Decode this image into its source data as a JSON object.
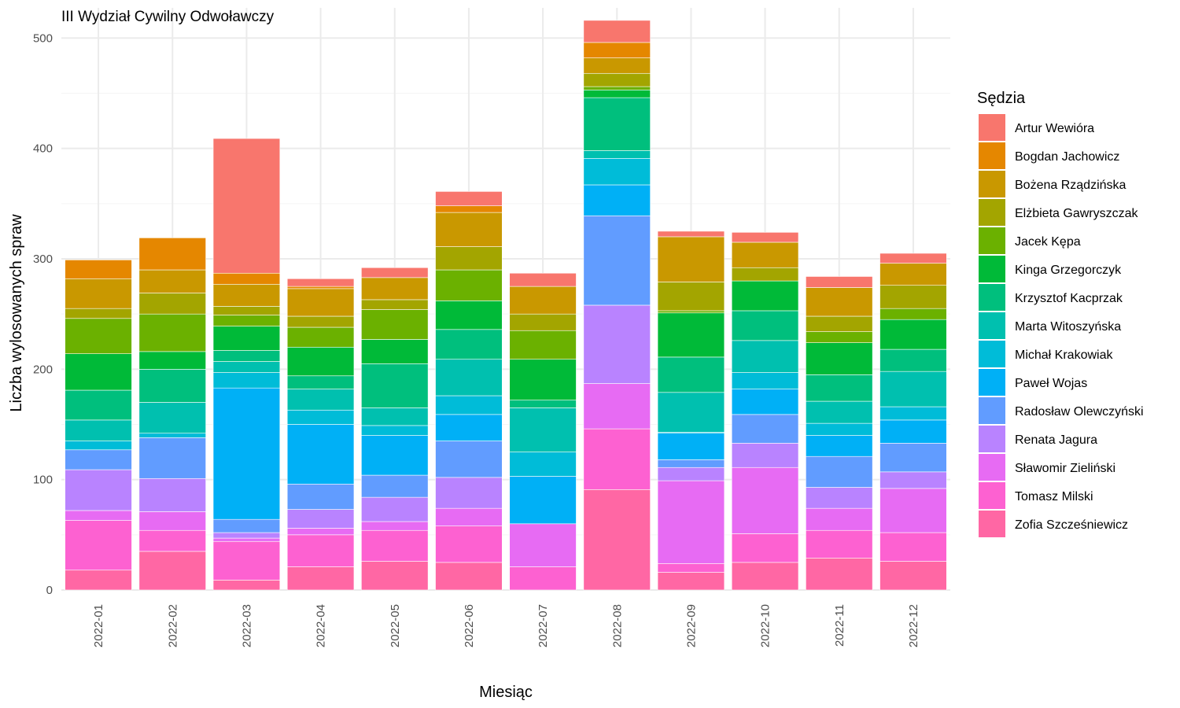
{
  "chart_data": {
    "type": "bar",
    "stacked": true,
    "title": "III Wydział Cywilny Odwoławczy",
    "xlabel": "Miesiąc",
    "ylabel": "Liczba wylosowanych spraw",
    "ylim": [
      0,
      520
    ],
    "yticks": [
      0,
      100,
      200,
      300,
      400,
      500
    ],
    "grid": true,
    "legend_position": "right",
    "legend_title": "Sędzia",
    "categories": [
      "2022-01",
      "2022-02",
      "2022-03",
      "2022-04",
      "2022-05",
      "2022-06",
      "2022-07",
      "2022-08",
      "2022-09",
      "2022-10",
      "2022-11",
      "2022-12"
    ],
    "series": [
      {
        "name": "Artur Wewióra",
        "color": "#F8766D",
        "values": [
          0,
          0,
          122,
          7,
          9,
          13,
          12,
          20,
          5,
          9,
          10,
          9
        ]
      },
      {
        "name": "Bogdan Jachowicz",
        "color": "#E58700",
        "values": [
          17,
          29,
          10,
          2,
          0,
          6,
          0,
          14,
          0,
          0,
          0,
          0
        ]
      },
      {
        "name": "Bożena Rządzińska",
        "color": "#C99800",
        "values": [
          27,
          21,
          20,
          25,
          20,
          31,
          25,
          14,
          41,
          23,
          26,
          20
        ]
      },
      {
        "name": "Elżbieta Gawryszczak",
        "color": "#A3A500",
        "values": [
          9,
          19,
          8,
          10,
          9,
          21,
          15,
          12,
          26,
          12,
          14,
          21
        ]
      },
      {
        "name": "Jacek Kępa",
        "color": "#6BB100",
        "values": [
          32,
          34,
          10,
          18,
          27,
          28,
          26,
          3,
          2,
          0,
          10,
          10
        ]
      },
      {
        "name": "Kinga Grzegorczyk",
        "color": "#00BA38",
        "values": [
          33,
          16,
          22,
          26,
          22,
          26,
          37,
          7,
          40,
          27,
          29,
          27
        ]
      },
      {
        "name": "Krzysztof Kacprzak",
        "color": "#00BF7D",
        "values": [
          27,
          30,
          10,
          12,
          40,
          27,
          7,
          48,
          32,
          27,
          24,
          20
        ]
      },
      {
        "name": "Marta Witoszyńska",
        "color": "#00C0AF",
        "values": [
          19,
          28,
          10,
          19,
          16,
          33,
          40,
          7,
          36,
          29,
          20,
          32
        ]
      },
      {
        "name": "Michał Krakowiak",
        "color": "#00BCD8",
        "values": [
          8,
          4,
          14,
          13,
          9,
          17,
          22,
          24,
          1,
          15,
          11,
          12
        ]
      },
      {
        "name": "Paweł Wojas",
        "color": "#00B0F6",
        "values": [
          0,
          0,
          119,
          54,
          36,
          24,
          43,
          28,
          24,
          23,
          19,
          21
        ]
      },
      {
        "name": "Radosław Olewczyński",
        "color": "#619CFF",
        "values": [
          18,
          37,
          12,
          23,
          20,
          33,
          0,
          81,
          7,
          26,
          28,
          26
        ]
      },
      {
        "name": "Renata Jagura",
        "color": "#B983FF",
        "values": [
          37,
          30,
          5,
          17,
          22,
          28,
          0,
          71,
          12,
          22,
          19,
          15
        ]
      },
      {
        "name": "Sławomir Zieliński",
        "color": "#E76BF3",
        "values": [
          9,
          17,
          3,
          6,
          8,
          16,
          39,
          41,
          75,
          60,
          20,
          40
        ]
      },
      {
        "name": "Tomasz Milski",
        "color": "#FD61D1",
        "values": [
          45,
          19,
          35,
          29,
          28,
          33,
          21,
          55,
          8,
          26,
          25,
          26
        ]
      },
      {
        "name": "Zofia Szcześniewicz",
        "color": "#FF67A4",
        "values": [
          18,
          35,
          9,
          21,
          26,
          25,
          0,
          91,
          16,
          25,
          29,
          26
        ]
      }
    ]
  }
}
